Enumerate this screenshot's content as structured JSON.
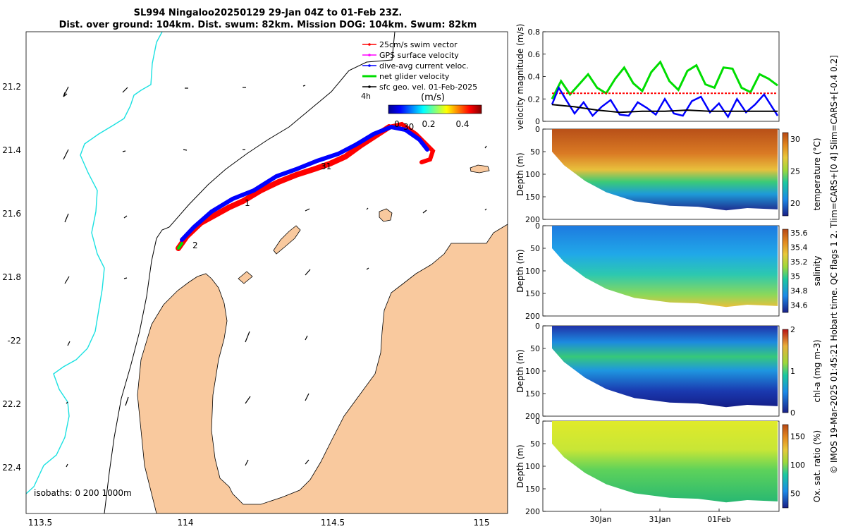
{
  "header": {
    "line1": "SL994 Ningaloo20250129 29-Jan 04Z to 01-Feb 23Z.",
    "line2": "Dist. over ground: 104km. Dist. swum: 82km. Mission DOG: 104km. Swum: 82km"
  },
  "side_note": "© IMOS 19-Mar-2025 01:45:21 Hobart time. QC flags 1  2. Tlim=CARS+[0 4] Slim=CARS+[-0.4 0.2]",
  "colors": {
    "land": "#F9C99E",
    "shelf": "#1BE1E1",
    "swim": "#FF0000",
    "gps": "#FF00FF",
    "dac": "#0000FF",
    "net": "#00DD00",
    "geo": "#000000"
  },
  "map": {
    "legend": {
      "items": [
        {
          "label": "25cm/s swim vector",
          "color": "#FF0000"
        },
        {
          "label": "GPS surface velocity",
          "color": "#FF00FF"
        },
        {
          "label": "dive-avg current veloc.",
          "color": "#0000FF"
        },
        {
          "label": "net glider velocity",
          "color": "#00DD00"
        },
        {
          "label": "sfc geo. vel. 01-Feb-2025",
          "color": "#000000"
        }
      ],
      "interval": "4h"
    },
    "colorbar": {
      "label": "(m/s)",
      "ticks": [
        "0",
        "0.2",
        "0.4"
      ],
      "range": [
        0,
        0.5
      ]
    },
    "isobaths_label": "isobaths: 0   200  1000m",
    "lon_ticks": [
      "113.5",
      "114",
      "114.5",
      "115"
    ],
    "lat_ticks": [
      "21.2",
      "21.4",
      "21.6",
      "21.8",
      "-22",
      "22.2",
      "22.4"
    ],
    "track_labels": [
      "30",
      "31",
      "1",
      "2"
    ]
  },
  "chart_data": [
    {
      "type": "line",
      "title": "",
      "ylabel": "velocity magnitude (m/s)",
      "ylim": [
        0,
        0.8
      ],
      "yticks": [
        "0",
        "0.2",
        "0.4",
        "0.6",
        "0.8"
      ],
      "series": [
        {
          "name": "net glider velocity",
          "color": "#00DD00",
          "x": [
            0,
            0.04,
            0.08,
            0.12,
            0.16,
            0.2,
            0.24,
            0.28,
            0.32,
            0.36,
            0.4,
            0.44,
            0.48,
            0.52,
            0.56,
            0.6,
            0.64,
            0.68,
            0.72,
            0.76,
            0.8,
            0.84,
            0.88,
            0.92,
            0.96,
            1.0
          ],
          "values": [
            0.2,
            0.36,
            0.24,
            0.33,
            0.42,
            0.3,
            0.25,
            0.38,
            0.48,
            0.34,
            0.27,
            0.44,
            0.53,
            0.36,
            0.28,
            0.45,
            0.5,
            0.33,
            0.3,
            0.48,
            0.47,
            0.3,
            0.26,
            0.42,
            0.38,
            0.32
          ]
        },
        {
          "name": "swim vector",
          "color": "#FF0000",
          "x": [
            0,
            1
          ],
          "values": [
            0.25,
            0.25
          ]
        },
        {
          "name": "dive-avg current veloc.",
          "color": "#0000FF",
          "x": [
            0,
            0.03,
            0.06,
            0.1,
            0.14,
            0.18,
            0.22,
            0.26,
            0.3,
            0.34,
            0.38,
            0.42,
            0.46,
            0.5,
            0.54,
            0.58,
            0.62,
            0.66,
            0.7,
            0.74,
            0.78,
            0.82,
            0.86,
            0.9,
            0.94,
            1.0
          ],
          "values": [
            0.15,
            0.3,
            0.2,
            0.07,
            0.17,
            0.05,
            0.13,
            0.19,
            0.06,
            0.05,
            0.17,
            0.12,
            0.06,
            0.2,
            0.07,
            0.05,
            0.18,
            0.22,
            0.08,
            0.16,
            0.04,
            0.2,
            0.08,
            0.15,
            0.24,
            0.05
          ]
        },
        {
          "name": "sfc geo. vel.",
          "color": "#000000",
          "x": [
            0,
            0.1,
            0.2,
            0.3,
            0.4,
            0.5,
            0.6,
            0.7,
            0.8,
            0.9,
            1.0
          ],
          "values": [
            0.15,
            0.13,
            0.1,
            0.08,
            0.09,
            0.09,
            0.1,
            0.09,
            0.09,
            0.09,
            0.09
          ]
        }
      ]
    },
    {
      "type": "heatmap",
      "ylabel": "Depth (m)",
      "colorbar_label": "temperature (°C)",
      "yticks": [
        "0",
        "50",
        "100",
        "150",
        "200"
      ],
      "ylim": [
        0,
        200
      ],
      "cb_ticks": [
        "30",
        "25",
        "20"
      ],
      "cb_range": [
        18,
        31
      ]
    },
    {
      "type": "heatmap",
      "ylabel": "Depth (m)",
      "colorbar_label": "salinity",
      "yticks": [
        "0",
        "50",
        "100",
        "150",
        "200"
      ],
      "ylim": [
        0,
        200
      ],
      "cb_ticks": [
        "35.6",
        "35.4",
        "35.2",
        "35",
        "34.8",
        "34.6"
      ],
      "cb_range": [
        34.5,
        35.65
      ]
    },
    {
      "type": "heatmap",
      "ylabel": "Depth (m)",
      "colorbar_label": "chl-a (mg m-3)",
      "yticks": [
        "0",
        "50",
        "100",
        "150",
        "200"
      ],
      "ylim": [
        0,
        200
      ],
      "cb_ticks": [
        "2",
        "1",
        "0"
      ],
      "cb_range": [
        0,
        2
      ]
    },
    {
      "type": "heatmap",
      "ylabel": "Depth (m)",
      "colorbar_label": "Ox. sat. ratio (%)",
      "yticks": [
        "0",
        "50",
        "100",
        "150",
        "200"
      ],
      "ylim": [
        0,
        200
      ],
      "cb_ticks": [
        "150",
        "100",
        "50"
      ],
      "cb_range": [
        25,
        170
      ],
      "xticks": [
        "30Jan",
        "31Jan",
        "01Feb"
      ]
    }
  ]
}
